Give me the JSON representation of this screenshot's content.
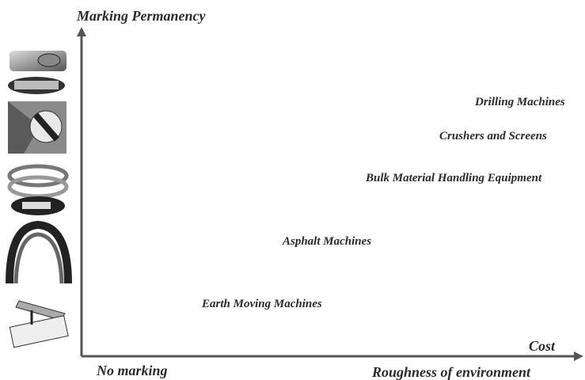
{
  "axes": {
    "y_label": "Marking Permanency",
    "x_label_end": "Cost",
    "x_label_origin": "No marking",
    "x_label_bottom": "Roughness of environment"
  },
  "items": [
    {
      "label": "Drilling Machines"
    },
    {
      "label": "Crushers and Screens"
    },
    {
      "label": "Bulk Material Handling Equipment"
    },
    {
      "label": "Asphalt Machines"
    },
    {
      "label": "Earth Moving Machines"
    }
  ]
}
